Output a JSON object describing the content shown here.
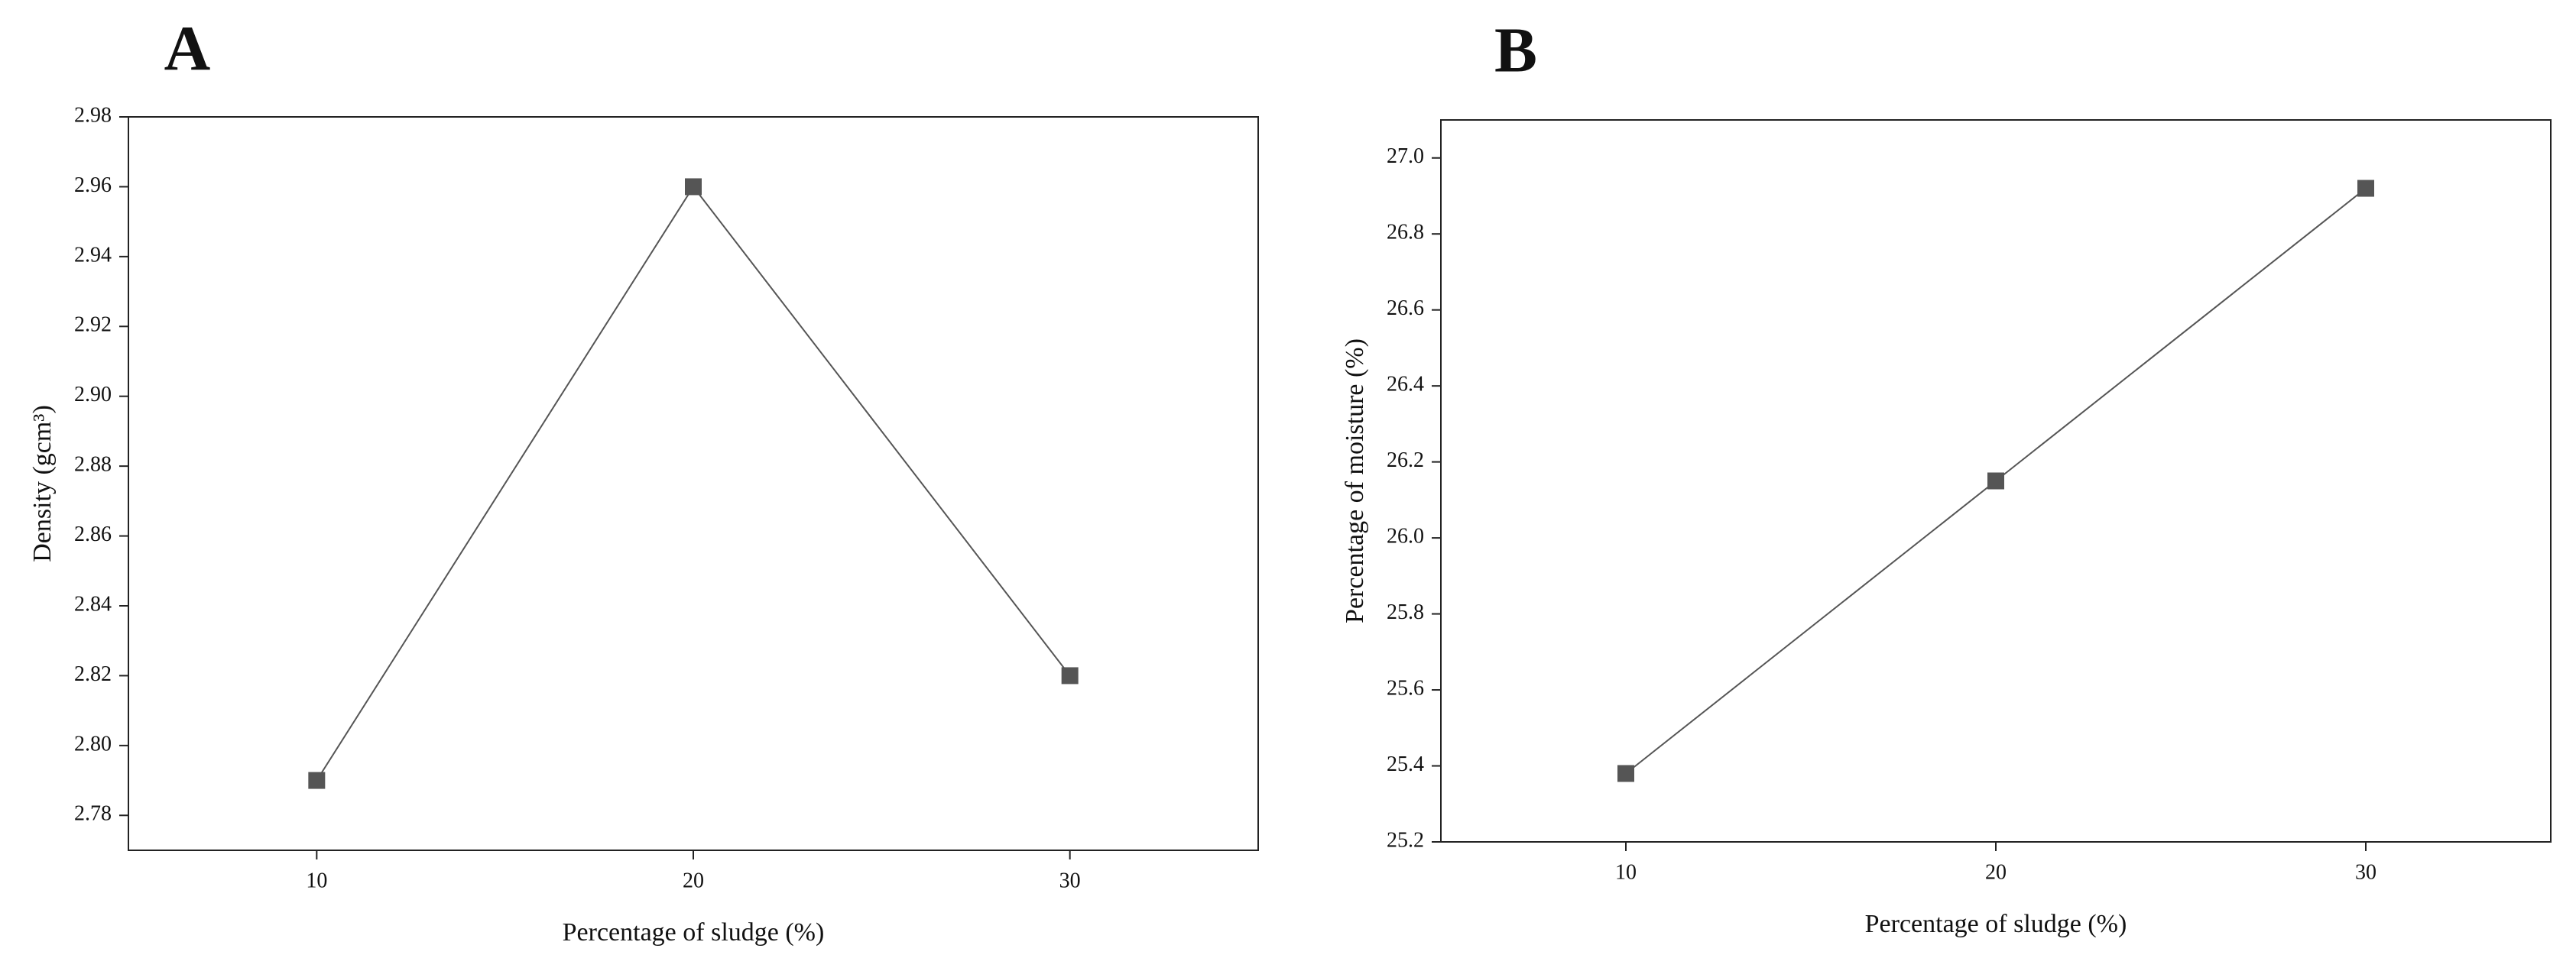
{
  "chart_data": [
    {
      "type": "line",
      "title": "A",
      "x_label": "Percentage of sludge (%)",
      "y_label": "Density (gcm³)",
      "x": [
        10,
        20,
        30
      ],
      "values": [
        2.79,
        2.96,
        2.82
      ],
      "color": "#555555",
      "xlim": [
        5,
        35
      ],
      "xticks": [
        10,
        20,
        30
      ],
      "ylim": [
        2.77,
        2.98
      ],
      "yticks": [
        {
          "value": 2.78,
          "label": "2.78"
        },
        {
          "value": 2.8,
          "label": "2.80"
        },
        2.82,
        2.84,
        2.86,
        2.88,
        {
          "value": 2.9,
          "label": "2.90"
        },
        2.92,
        2.94,
        2.96,
        2.98
      ]
    },
    {
      "type": "line",
      "title": "B",
      "x_label": "Percentage of sludge (%)",
      "y_label": "Percentage of moisture (%)",
      "x": [
        10,
        20,
        30
      ],
      "values": [
        25.38,
        26.15,
        26.92
      ],
      "color": "#555555",
      "xlim": [
        5,
        35
      ],
      "xticks": [
        10,
        20,
        30
      ],
      "ylim": [
        25.2,
        27.1
      ],
      "yticks": [
        25.2,
        25.4,
        25.6,
        25.8,
        {
          "value": 26,
          "label": "26.0"
        },
        26.2,
        26.4,
        26.6,
        26.8,
        {
          "value": 27,
          "label": "27.0"
        }
      ]
    }
  ]
}
